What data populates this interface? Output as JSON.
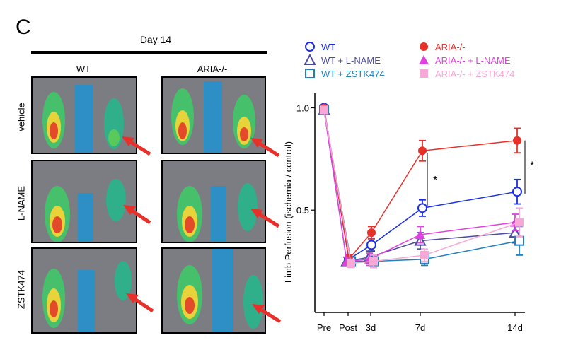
{
  "figure": {
    "panel_letter": "C",
    "day_label": "Day 14",
    "columns": [
      "WT",
      "ARIA-/-"
    ],
    "rows": [
      "vehicle",
      "L-NAME",
      "ZSTK474"
    ]
  },
  "chart_data": {
    "type": "line",
    "title": "",
    "xlabel": "",
    "ylabel": "Limb Perfusion (ischemia / control)",
    "categories": [
      "Pre",
      "Post",
      "3d",
      "7d",
      "14d"
    ],
    "x": [
      0,
      1,
      2,
      4,
      8
    ],
    "yticks": [
      0.5,
      1.0
    ],
    "ylim": [
      0.0,
      1.05
    ],
    "legend_placement": "top",
    "series": [
      {
        "name": "WT",
        "color": "#1a2ee6",
        "marker": "circle-open",
        "values": [
          1.0,
          0.26,
          0.33,
          0.51,
          0.59
        ],
        "err": [
          0.0,
          0.02,
          0.03,
          0.04,
          0.06
        ]
      },
      {
        "name": "WT + L-NAME",
        "color": "#4a4aa0",
        "marker": "triangle-open",
        "values": [
          0.99,
          0.25,
          0.27,
          0.35,
          0.39
        ],
        "err": [
          0.0,
          0.02,
          0.03,
          0.04,
          0.05
        ]
      },
      {
        "name": "WT + ZSTK474",
        "color": "#1f7fbf",
        "marker": "square-open",
        "values": [
          0.99,
          0.25,
          0.25,
          0.26,
          0.35
        ],
        "err": [
          0.0,
          0.02,
          0.03,
          0.03,
          0.07
        ]
      },
      {
        "name": "ARIA-/-",
        "color": "#e8302a",
        "marker": "circle-filled",
        "values": [
          1.0,
          0.26,
          0.39,
          0.79,
          0.84
        ],
        "err": [
          0.0,
          0.02,
          0.03,
          0.05,
          0.06
        ]
      },
      {
        "name": "ARIA-/-  + L-NAME",
        "color": "#e040e0",
        "marker": "triangle-filled",
        "values": [
          0.99,
          0.25,
          0.26,
          0.38,
          0.44
        ],
        "err": [
          0.0,
          0.02,
          0.03,
          0.04,
          0.04
        ]
      },
      {
        "name": "ARIA-/-  + ZSTK474",
        "color": "#f7a8d6",
        "marker": "square-filled",
        "values": [
          0.99,
          0.24,
          0.25,
          0.28,
          0.44
        ],
        "err": [
          0.0,
          0.02,
          0.03,
          0.03,
          0.07
        ]
      }
    ],
    "annotations": [
      "*",
      "*"
    ]
  }
}
